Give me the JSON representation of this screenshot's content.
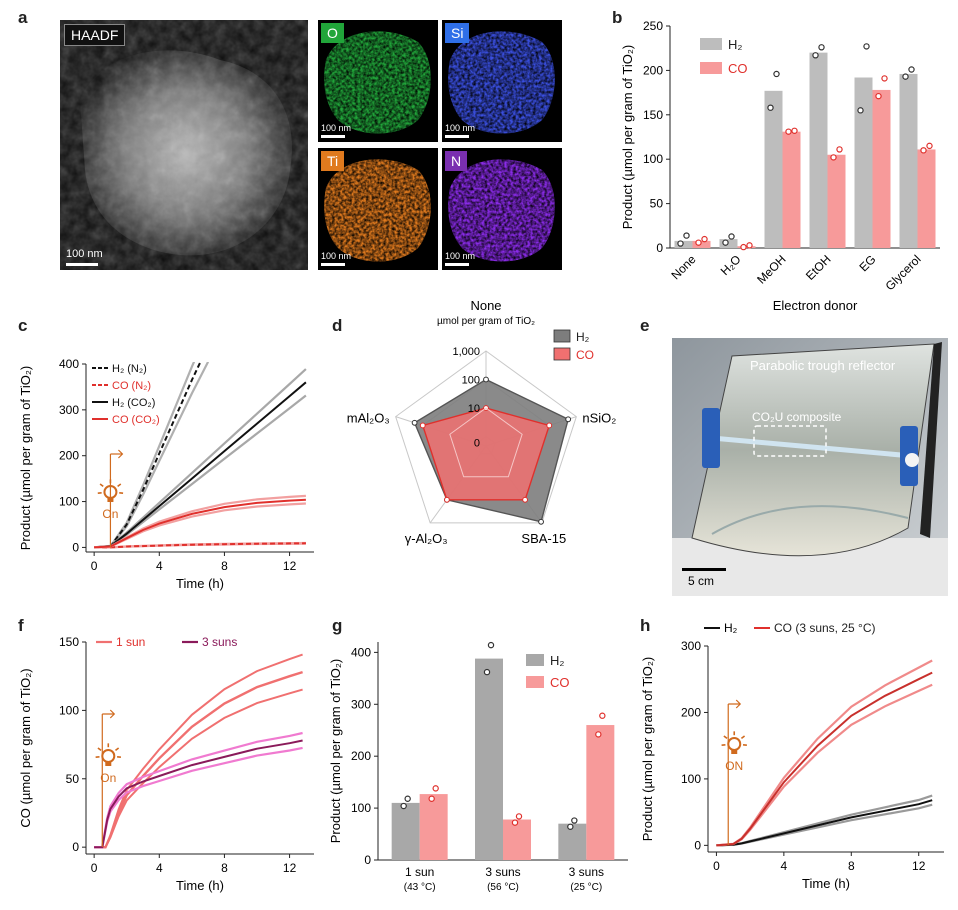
{
  "panel_a": {
    "letter": "a",
    "main_label": "HAADF",
    "main_scale": "100 nm",
    "maps": [
      {
        "label": "O",
        "scale": "100 nm",
        "color": "#21a53a",
        "label_bg": "#21a53a"
      },
      {
        "label": "Si",
        "scale": "100 nm",
        "color": "#3a4fe0",
        "label_bg": "#2f6fe8"
      },
      {
        "label": "Ti",
        "scale": "100 nm",
        "color": "#e07a1e",
        "label_bg": "#e07a1e"
      },
      {
        "label": "N",
        "scale": "100 nm",
        "color": "#8a2be8",
        "label_bg": "#7a2fb0"
      }
    ]
  },
  "panel_e": {
    "letter": "e",
    "reflector_label": "Parabolic trough reflector",
    "composite_label": "CO₂U composite",
    "scale": "5 cm"
  },
  "chart_data": [
    {
      "panel": "b",
      "type": "bar",
      "ylabel": "Product (µmol per gram of TiO₂)",
      "xlabel": "Electron donor",
      "categories": [
        "None",
        "H₂O",
        "MeOH",
        "EtOH",
        "EG",
        "Glycerol"
      ],
      "ylim": [
        0,
        250
      ],
      "yticks": [
        0,
        50,
        100,
        150,
        200,
        250
      ],
      "legend": [
        "H₂",
        "CO"
      ],
      "colors": {
        "H2": "#bdbdbd",
        "CO": "#f79a9a",
        "H2_dot": "#333333",
        "CO_dot": "#e0302c"
      },
      "series": [
        {
          "name": "H₂",
          "values": [
            8,
            10,
            177,
            220,
            192,
            196
          ],
          "points": [
            [
              5,
              14
            ],
            [
              6,
              13
            ],
            [
              158,
              196
            ],
            [
              217,
              226
            ],
            [
              155,
              227
            ],
            [
              193,
              201
            ]
          ]
        },
        {
          "name": "CO",
          "values": [
            8,
            2,
            131,
            105,
            178,
            111
          ],
          "points": [
            [
              6,
              10
            ],
            [
              1,
              3
            ],
            [
              131,
              132
            ],
            [
              102,
              111
            ],
            [
              171,
              191
            ],
            [
              110,
              115
            ]
          ]
        }
      ]
    },
    {
      "panel": "c",
      "type": "line",
      "ylabel": "Product (µmol per gram of TiO₂)",
      "xlabel": "Time (h)",
      "xlim": [
        -0.5,
        13.5
      ],
      "ylim": [
        -10,
        400
      ],
      "xticks": [
        0,
        4,
        8,
        12
      ],
      "yticks": [
        0,
        100,
        200,
        300,
        400
      ],
      "on_label": "On",
      "on_time": 1,
      "legend": [
        {
          "label": "H₂ (N₂)",
          "style": "dashed",
          "color": "#111111"
        },
        {
          "label": "CO (N₂)",
          "style": "dashed",
          "color": "#e0302c"
        },
        {
          "label": "H₂ (CO₂)",
          "style": "solid",
          "color": "#111111"
        },
        {
          "label": "CO (CO₂)",
          "style": "solid",
          "color": "#e0302c"
        }
      ],
      "series": [
        {
          "name": "H₂ (N₂)",
          "x": [
            0,
            1,
            2,
            3,
            4,
            5,
            6,
            7
          ],
          "y": [
            0,
            2,
            50,
            125,
            205,
            285,
            365,
            440
          ]
        },
        {
          "name": "CO (N₂)",
          "x": [
            0,
            1,
            2,
            4,
            6,
            8,
            10,
            13
          ],
          "y": [
            0,
            0,
            2,
            4,
            6,
            7,
            8,
            9
          ]
        },
        {
          "name": "H₂ (CO₂)",
          "x": [
            0,
            1,
            2,
            4,
            6,
            8,
            10,
            12,
            13
          ],
          "y": [
            0,
            3,
            30,
            90,
            150,
            210,
            270,
            330,
            360
          ]
        },
        {
          "name": "CO (CO₂)",
          "x": [
            0,
            1,
            2,
            3,
            4,
            6,
            8,
            10,
            12,
            13
          ],
          "y": [
            0,
            2,
            20,
            38,
            52,
            73,
            88,
            97,
            102,
            104
          ]
        }
      ]
    },
    {
      "panel": "d",
      "type": "radar",
      "axes": [
        "None",
        "nSiO₂",
        "SBA-15",
        "γ-Al₂O₃",
        "mAl₂O₃"
      ],
      "top_unit": "µmol per gram of TiO₂",
      "ring_labels": [
        "1,000",
        "100",
        "10",
        "0"
      ],
      "legend": [
        "H₂",
        "CO"
      ],
      "colors": {
        "H2": "#7d7d7d",
        "CO": "#f07070"
      },
      "series": [
        {
          "name": "H₂",
          "values": [
            100,
            500,
            900,
            100,
            200
          ]
        },
        {
          "name": "CO",
          "values": [
            10,
            100,
            100,
            100,
            100
          ]
        }
      ]
    },
    {
      "panel": "f",
      "type": "line",
      "ylabel": "CO (µmol per gram of TiO₂)",
      "xlabel": "Time (h)",
      "xlim": [
        -0.5,
        13.5
      ],
      "ylim": [
        -5,
        150
      ],
      "xticks": [
        0,
        4,
        8,
        12
      ],
      "yticks": [
        0,
        50,
        100,
        150
      ],
      "on_label": "On",
      "on_time": 0.5,
      "legend": [
        "1 sun",
        "3 suns"
      ],
      "colors": {
        "1 sun": "#f07070",
        "3 suns": "#8a1a5a",
        "3 suns_band": "#f07ad0"
      },
      "series": [
        {
          "name": "1 sun",
          "x": [
            0,
            0.7,
            1,
            1.5,
            2,
            3,
            4,
            6,
            8,
            10,
            12,
            12.8
          ],
          "y": [
            0,
            0,
            8,
            25,
            38,
            52,
            65,
            88,
            105,
            117,
            125,
            128
          ]
        },
        {
          "name": "3 suns",
          "x": [
            0,
            0.5,
            0.8,
            1,
            1.5,
            2,
            3,
            4,
            6,
            8,
            10,
            12,
            12.8
          ],
          "y": [
            0,
            0,
            20,
            28,
            37,
            43,
            48,
            52,
            60,
            66,
            72,
            76,
            78
          ]
        }
      ]
    },
    {
      "panel": "g",
      "type": "bar",
      "ylabel": "Product (µmol per gram of TiO₂)",
      "categories": [
        "1 sun",
        "3 suns",
        "3 suns"
      ],
      "subcategories": [
        "(43 °C)",
        "(56 °C)",
        "(25 °C)"
      ],
      "ylim": [
        0,
        420
      ],
      "yticks": [
        0,
        100,
        200,
        300,
        400
      ],
      "legend": [
        "H₂",
        "CO"
      ],
      "colors": {
        "H2": "#a8a8a8",
        "CO": "#f79a9a",
        "H2_dot": "#333333",
        "CO_dot": "#e0302c"
      },
      "series": [
        {
          "name": "H₂",
          "values": [
            110,
            388,
            70
          ],
          "points": [
            [
              104,
              118
            ],
            [
              362,
              414
            ],
            [
              64,
              76
            ]
          ]
        },
        {
          "name": "CO",
          "values": [
            127,
            78,
            260
          ],
          "points": [
            [
              118,
              138
            ],
            [
              72,
              84
            ],
            [
              242,
              278
            ]
          ]
        }
      ]
    },
    {
      "panel": "h",
      "type": "line",
      "ylabel": "Product (µmol per gram of TiO₂)",
      "xlabel": "Time (h)",
      "xlim": [
        -0.5,
        13.5
      ],
      "ylim": [
        -10,
        300
      ],
      "xticks": [
        0,
        4,
        8,
        12
      ],
      "yticks": [
        0,
        100,
        200,
        300
      ],
      "on_label": "ON",
      "on_time": 0.7,
      "legend_h2": "H₂",
      "legend_co": "CO (3 suns, 25 °C)",
      "colors": {
        "H2": "#111111",
        "CO": "#e0302c"
      },
      "series": [
        {
          "name": "H₂",
          "x": [
            0,
            1,
            1.5,
            2,
            4,
            6,
            8,
            10,
            12,
            12.8
          ],
          "y": [
            0,
            1,
            3,
            6,
            18,
            30,
            42,
            52,
            62,
            68
          ]
        },
        {
          "name": "CO",
          "x": [
            0,
            1,
            1.5,
            2,
            3,
            4,
            6,
            8,
            10,
            12,
            12.8
          ],
          "y": [
            0,
            2,
            10,
            25,
            60,
            95,
            150,
            195,
            225,
            250,
            260
          ]
        }
      ]
    }
  ]
}
